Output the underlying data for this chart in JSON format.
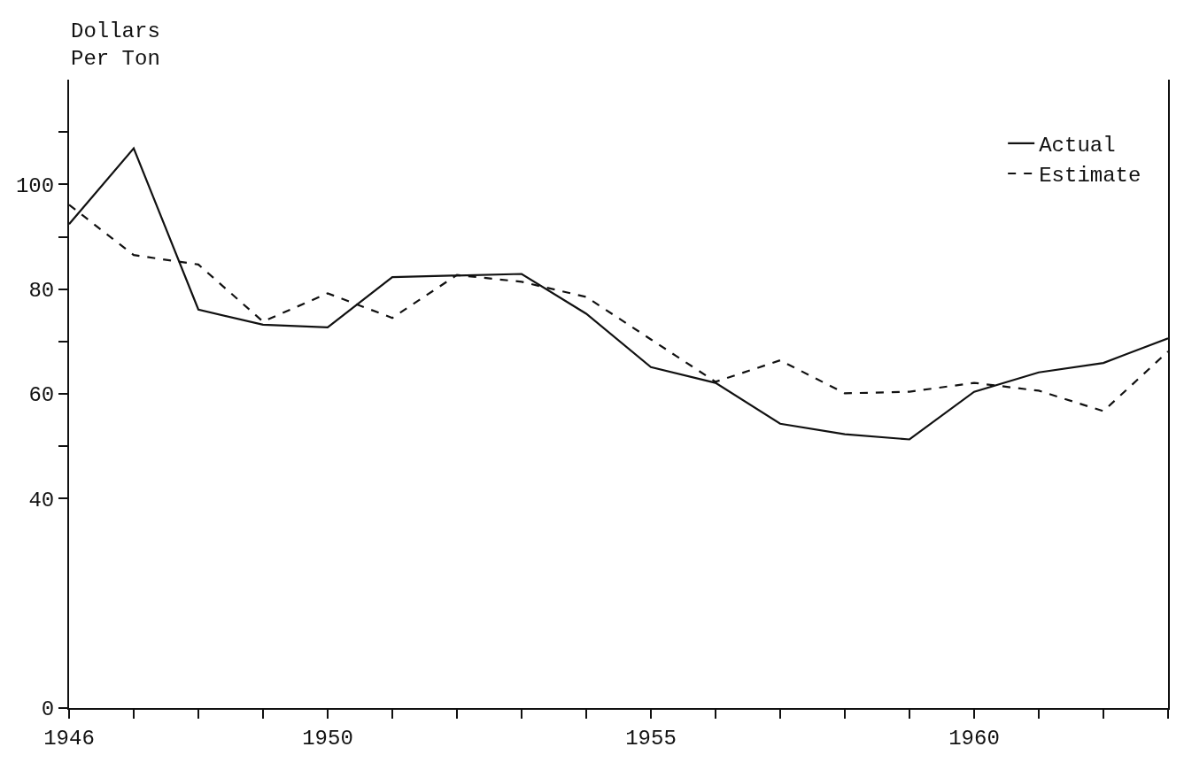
{
  "chart_data": {
    "type": "line",
    "ylabel": "Dollars\nPer Ton",
    "x": [
      1946,
      1947,
      1948,
      1949,
      1950,
      1951,
      1952,
      1953,
      1954,
      1955,
      1956,
      1957,
      1958,
      1959,
      1960,
      1961,
      1962,
      1963
    ],
    "series": [
      {
        "name": "Actual",
        "color": "#111111",
        "line_style": "solid",
        "values": [
          92.4,
          106.9,
          76.1,
          73.2,
          72.7,
          82.3,
          82.6,
          82.9,
          75.3,
          65.1,
          62.1,
          54.3,
          52.3,
          51.3,
          60.4,
          64.1,
          65.9,
          70.6
        ]
      },
      {
        "name": "Estimate",
        "color": "#111111",
        "line_style": "dashed",
        "values": [
          96.1,
          86.5,
          84.7,
          73.8,
          79.2,
          74.5,
          82.7,
          81.4,
          78.5,
          70.4,
          62.3,
          66.4,
          60.1,
          60.4,
          62.1,
          60.6,
          56.7,
          68.1
        ]
      }
    ],
    "xlim": [
      1946,
      1963
    ],
    "xticks": [
      1946,
      {
        "value": 1947,
        "label": null
      },
      {
        "value": 1948,
        "label": null
      },
      {
        "value": 1949,
        "label": null
      },
      1950,
      {
        "value": 1951,
        "label": null
      },
      {
        "value": 1952,
        "label": null
      },
      {
        "value": 1953,
        "label": null
      },
      {
        "value": 1954,
        "label": null
      },
      1955,
      {
        "value": 1956,
        "label": null
      },
      {
        "value": 1957,
        "label": null
      },
      {
        "value": 1958,
        "label": null
      },
      {
        "value": 1959,
        "label": null
      },
      1960,
      {
        "value": 1961,
        "label": null
      },
      {
        "value": 1962,
        "label": null
      },
      {
        "value": 1963,
        "label": null
      }
    ],
    "ylim": [
      0,
      120
    ],
    "yticks": [
      0,
      40,
      {
        "value": 50,
        "label": null
      },
      60,
      {
        "value": 70,
        "label": null
      },
      80,
      {
        "value": 90,
        "label": null
      },
      100,
      {
        "value": 110,
        "label": null
      }
    ],
    "grid": false,
    "legend": "top right",
    "marker": "none"
  }
}
